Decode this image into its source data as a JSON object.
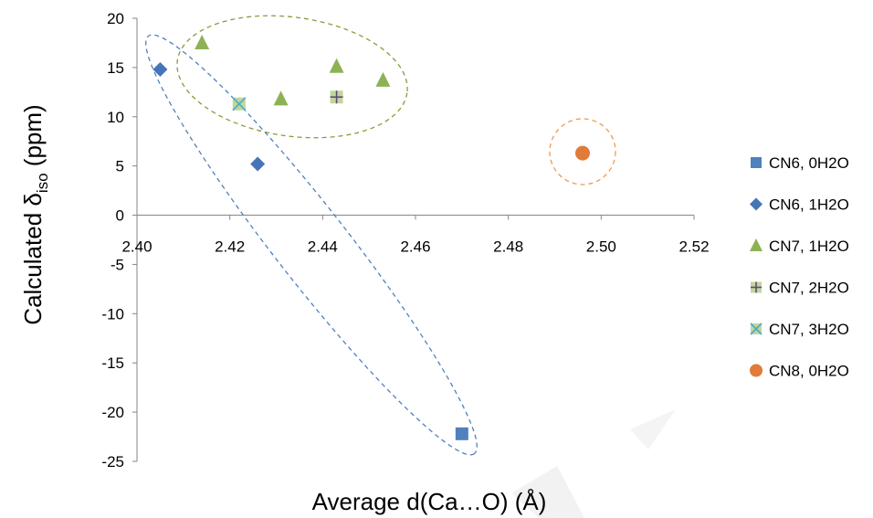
{
  "chart_data": {
    "type": "scatter",
    "xlabel": "Average d(Ca…O) (Å)",
    "ylabel": {
      "main": "Calculated δ",
      "sub": "iso",
      "unit": " (ppm)"
    },
    "xlim": [
      2.4,
      2.52
    ],
    "ylim": [
      -25,
      20
    ],
    "x_ticks": [
      "2.40",
      "2.42",
      "2.44",
      "2.46",
      "2.48",
      "2.50",
      "2.52"
    ],
    "y_ticks": [
      "20",
      "15",
      "10",
      "5",
      "0",
      "-5",
      "-10",
      "-15",
      "-20",
      "-25"
    ],
    "grid": false,
    "legend_position": "right",
    "series": [
      {
        "name": "CN6, 0H2O",
        "marker": "square",
        "color": "#4f81bd",
        "points": [
          [
            2.47,
            -22.2
          ]
        ]
      },
      {
        "name": "CN6, 1H2O",
        "marker": "diamond",
        "color": "#4674b8",
        "points": [
          [
            2.405,
            14.8
          ],
          [
            2.426,
            5.2
          ]
        ]
      },
      {
        "name": "CN7, 1H2O",
        "marker": "triangle",
        "color": "#8db255",
        "points": [
          [
            2.414,
            17.5
          ],
          [
            2.431,
            11.8
          ],
          [
            2.443,
            15.1
          ],
          [
            2.453,
            13.7
          ]
        ]
      },
      {
        "name": "CN7, 2H2O",
        "marker": "plus-square",
        "color": "#c2d69b",
        "points": [
          [
            2.443,
            12.0
          ]
        ]
      },
      {
        "name": "CN7, 3H2O",
        "marker": "x-square",
        "color": "#c2d69b",
        "points": [
          [
            2.422,
            11.3
          ]
        ]
      },
      {
        "name": "CN8, 0H2O",
        "marker": "circle",
        "color": "#e07b39",
        "points": [
          [
            2.496,
            6.3
          ]
        ]
      }
    ],
    "annotations": [
      {
        "shape": "ellipse",
        "color": "#8a9a3a",
        "label": "green-group"
      },
      {
        "shape": "ellipse",
        "color": "#4f81bd",
        "label": "blue-group"
      },
      {
        "shape": "ellipse",
        "color": "#f29a4c",
        "label": "orange-group"
      }
    ]
  }
}
